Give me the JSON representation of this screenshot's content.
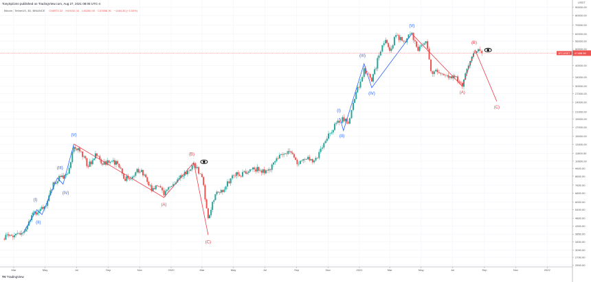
{
  "header": {
    "published": "TonySpilotro published on TradingView.com, Aug 27, 2021 08:08 UTC-4",
    "symbol": "Bitcoin / TetherUS, 3D, BINANCE",
    "open": "O48973.32",
    "high": "H49152.84",
    "low": "L46250.00",
    "close": "C47488.96",
    "change": "−1484.36 (−3.03%)"
  },
  "footer": {
    "logo_mark": "TV",
    "logo_text": "TradingView"
  },
  "colors": {
    "up": "#26a69a",
    "down": "#ef5350",
    "impulse": "#2962ff",
    "correction": "#f23645",
    "grid": "#f0f3fa"
  },
  "chart_data": {
    "type": "candlestick",
    "scale": "log",
    "price_label": "47488.96",
    "price_tag": "BTCUSDT",
    "currency": "USDT",
    "ylim": [
      2500,
      90000
    ],
    "y_ticks": [
      "90000.00",
      "80000.00",
      "70000.00",
      "62000.00",
      "56000.00",
      "50000.00",
      "40000.00",
      "34000.00",
      "30000.00",
      "27000.00",
      "24000.00",
      "21000.00",
      "19000.00",
      "17000.00",
      "15000.00",
      "13400.00",
      "11800.00",
      "10600.00",
      "9600.00",
      "8600.00",
      "7600.00",
      "6800.00",
      "6000.00",
      "5400.00",
      "4800.00",
      "4300.00",
      "3850.00",
      "3450.00",
      "3090.00",
      "2790.00",
      "2500.00"
    ],
    "x_ticks": [
      {
        "label": "Mar",
        "date": "2019-03-01"
      },
      {
        "label": "May",
        "date": "2019-05-01"
      },
      {
        "label": "Jul",
        "date": "2019-07-01"
      },
      {
        "label": "Sep",
        "date": "2019-09-01"
      },
      {
        "label": "Nov",
        "date": "2019-11-01"
      },
      {
        "label": "2020",
        "date": "2020-01-01"
      },
      {
        "label": "Mar",
        "date": "2020-03-01"
      },
      {
        "label": "May",
        "date": "2020-05-01"
      },
      {
        "label": "Jul",
        "date": "2020-07-01"
      },
      {
        "label": "Sep",
        "date": "2020-09-01"
      },
      {
        "label": "Nov",
        "date": "2020-11-01"
      },
      {
        "label": "2021",
        "date": "2021-01-01"
      },
      {
        "label": "Mar",
        "date": "2021-03-01"
      },
      {
        "label": "May",
        "date": "2021-05-01"
      },
      {
        "label": "Jul",
        "date": "2021-07-01"
      },
      {
        "label": "Sep",
        "date": "2021-09-01"
      },
      {
        "label": "Nov",
        "date": "2021-11-01"
      },
      {
        "label": "2022",
        "date": "2022-01-01"
      }
    ],
    "closes": [
      [
        "2019-02-08",
        3600
      ],
      [
        "2019-02-22",
        3800
      ],
      [
        "2019-03-08",
        3900
      ],
      [
        "2019-03-22",
        4000
      ],
      [
        "2019-04-05",
        5000
      ],
      [
        "2019-04-19",
        5300
      ],
      [
        "2019-05-03",
        5700
      ],
      [
        "2019-05-17",
        7900
      ],
      [
        "2019-05-31",
        8500
      ],
      [
        "2019-06-14",
        8900
      ],
      [
        "2019-06-26",
        12900
      ],
      [
        "2019-07-10",
        12100
      ],
      [
        "2019-07-24",
        9800
      ],
      [
        "2019-08-07",
        11800
      ],
      [
        "2019-08-21",
        10100
      ],
      [
        "2019-09-05",
        10500
      ],
      [
        "2019-09-19",
        10200
      ],
      [
        "2019-10-01",
        8300
      ],
      [
        "2019-10-15",
        8300
      ],
      [
        "2019-10-27",
        9500
      ],
      [
        "2019-11-10",
        8800
      ],
      [
        "2019-11-24",
        7000
      ],
      [
        "2019-12-08",
        7500
      ],
      [
        "2019-12-18",
        6600
      ],
      [
        "2020-01-05",
        7700
      ],
      [
        "2020-01-19",
        8700
      ],
      [
        "2020-02-02",
        9300
      ],
      [
        "2020-02-14",
        10300
      ],
      [
        "2020-03-01",
        8500
      ],
      [
        "2020-03-13",
        4800
      ],
      [
        "2020-03-27",
        6700
      ],
      [
        "2020-04-10",
        6900
      ],
      [
        "2020-04-29",
        8700
      ],
      [
        "2020-05-10",
        8800
      ],
      [
        "2020-05-25",
        8900
      ],
      [
        "2020-06-08",
        9700
      ],
      [
        "2020-06-22",
        9300
      ],
      [
        "2020-07-06",
        9300
      ],
      [
        "2020-07-27",
        11000
      ],
      [
        "2020-08-10",
        11800
      ],
      [
        "2020-08-24",
        11700
      ],
      [
        "2020-09-05",
        10200
      ],
      [
        "2020-09-20",
        10900
      ],
      [
        "2020-10-05",
        10700
      ],
      [
        "2020-10-21",
        12800
      ],
      [
        "2020-11-05",
        15600
      ],
      [
        "2020-11-20",
        18600
      ],
      [
        "2020-12-05",
        19100
      ],
      [
        "2020-12-10",
        17800
      ],
      [
        "2020-12-20",
        23800
      ],
      [
        "2021-01-03",
        32000
      ],
      [
        "2021-01-10",
        38500
      ],
      [
        "2021-01-25",
        32000
      ],
      [
        "2021-02-08",
        46000
      ],
      [
        "2021-02-21",
        57000
      ],
      [
        "2021-03-01",
        49000
      ],
      [
        "2021-03-13",
        61000
      ],
      [
        "2021-03-28",
        55800
      ],
      [
        "2021-04-13",
        63000
      ],
      [
        "2021-04-25",
        49000
      ],
      [
        "2021-05-10",
        56000
      ],
      [
        "2021-05-20",
        37000
      ],
      [
        "2021-06-05",
        36000
      ],
      [
        "2021-06-20",
        35000
      ],
      [
        "2021-07-05",
        34000
      ],
      [
        "2021-07-20",
        29800
      ],
      [
        "2021-08-01",
        40000
      ],
      [
        "2021-08-14",
        47500
      ],
      [
        "2021-08-23",
        49000
      ],
      [
        "2021-08-27",
        47488.96
      ]
    ],
    "waves": [
      {
        "color": "impulse",
        "points": [
          [
            "2019-03-20",
            3950
          ],
          [
            "2019-04-15",
            5400
          ],
          [
            "2019-04-25",
            5050
          ],
          [
            "2019-05-25",
            8400
          ],
          [
            "2019-06-05",
            7700
          ],
          [
            "2019-06-26",
            13450
          ]
        ]
      },
      {
        "color": "correction",
        "points": [
          [
            "2019-06-26",
            13450
          ],
          [
            "2019-12-18",
            6400
          ],
          [
            "2020-02-14",
            10400
          ],
          [
            "2020-03-13",
            3800
          ]
        ]
      },
      {
        "color": "impulse",
        "points": [
          [
            "2020-11-24",
            19300
          ],
          [
            "2020-12-01",
            16200
          ],
          [
            "2021-01-10",
            41000
          ],
          [
            "2021-01-25",
            29400
          ],
          [
            "2021-04-13",
            62000
          ]
        ]
      },
      {
        "color": "correction",
        "points": [
          [
            "2021-04-13",
            62000
          ],
          [
            "2021-07-20",
            30000
          ],
          [
            "2021-08-14",
            49500
          ],
          [
            "2021-09-25",
            24300
          ]
        ]
      }
    ],
    "annotations": [
      {
        "text": "(I)",
        "color": "impulse",
        "date": "2019-04-12",
        "price": 6100
      },
      {
        "text": "(II)",
        "color": "impulse",
        "date": "2019-04-18",
        "price": 4450
      },
      {
        "text": "(III)",
        "color": "impulse",
        "date": "2019-05-30",
        "price": 9500
      },
      {
        "text": "(IV)",
        "color": "impulse",
        "date": "2019-06-10",
        "price": 6700
      },
      {
        "text": "(V)",
        "color": "impulse",
        "date": "2019-06-26",
        "price": 15000
      },
      {
        "text": "(A)",
        "color": "correction",
        "date": "2019-12-18",
        "price": 5700
      },
      {
        "text": "(B)",
        "color": "correction",
        "date": "2020-02-10",
        "price": 11500
      },
      {
        "text": "(C)",
        "color": "correction",
        "date": "2020-03-13",
        "price": 3400
      },
      {
        "text": "(I)",
        "color": "impulse",
        "date": "2020-11-22",
        "price": 21000
      },
      {
        "text": "(II)",
        "color": "impulse",
        "date": "2020-11-28",
        "price": 14800
      },
      {
        "text": "(III)",
        "color": "impulse",
        "date": "2021-01-07",
        "price": 45000
      },
      {
        "text": "(IV)",
        "color": "impulse",
        "date": "2021-01-25",
        "price": 26700
      },
      {
        "text": "(V)",
        "color": "impulse",
        "date": "2021-04-13",
        "price": 68000
      },
      {
        "text": "(A)",
        "color": "correction",
        "date": "2021-07-20",
        "price": 27000
      },
      {
        "text": "(B)",
        "color": "correction",
        "date": "2021-08-12",
        "price": 54000
      },
      {
        "text": "(C)",
        "color": "correction",
        "date": "2021-09-25",
        "price": 22000
      }
    ],
    "eye_icons": [
      [
        "2020-03-05",
        10500
      ],
      [
        "2021-09-08",
        49500
      ]
    ]
  }
}
